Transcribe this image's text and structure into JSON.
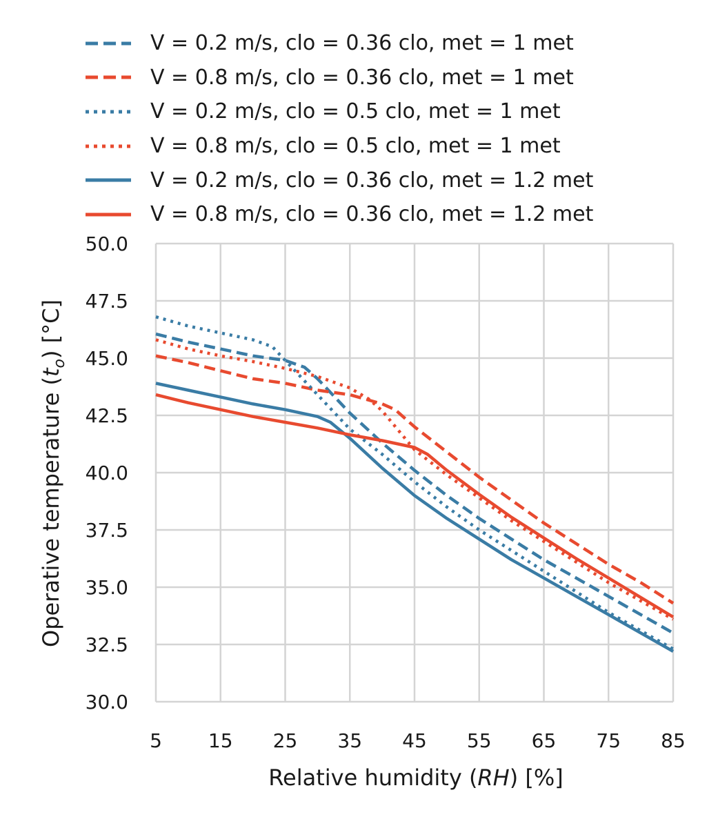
{
  "chart_data": {
    "type": "line",
    "xlabel": "Relative humidity (RH) [%]",
    "ylabel": "Operative temperature (t_o) [°C]",
    "xlim": [
      5,
      85
    ],
    "ylim": [
      30.0,
      50.0
    ],
    "xticks": [
      "5",
      "15",
      "25",
      "35",
      "45",
      "55",
      "65",
      "75",
      "85"
    ],
    "yticks": [
      "30.0",
      "32.5",
      "35.0",
      "37.5",
      "40.0",
      "42.5",
      "45.0",
      "47.5",
      "50.0"
    ],
    "grid": true,
    "legend_position": "top",
    "series": [
      {
        "name": "V = 0.2 m/s, clo = 0.36 clo, met = 1 met",
        "color": "#3a7ca5",
        "dash": "dashed",
        "x": [
          5,
          10,
          15,
          20,
          25,
          28,
          30,
          35,
          40,
          45,
          50,
          55,
          60,
          65,
          70,
          75,
          80,
          85
        ],
        "y": [
          46.05,
          45.7,
          45.4,
          45.1,
          44.9,
          44.6,
          44.1,
          42.6,
          41.3,
          40.1,
          39.0,
          38.0,
          37.1,
          36.2,
          35.4,
          34.6,
          33.8,
          33.0
        ]
      },
      {
        "name": "V = 0.8 m/s, clo = 0.36 clo, met = 1 met",
        "color": "#e84a2f",
        "dash": "dashed",
        "x": [
          5,
          10,
          15,
          20,
          25,
          30,
          35,
          40,
          42,
          45,
          50,
          55,
          60,
          65,
          70,
          75,
          80,
          85
        ],
        "y": [
          45.1,
          44.8,
          44.45,
          44.1,
          43.9,
          43.6,
          43.4,
          43.0,
          42.75,
          42.0,
          40.9,
          39.8,
          38.8,
          37.8,
          36.9,
          36.0,
          35.2,
          34.3
        ]
      },
      {
        "name": "V = 0.2 m/s, clo = 0.5 clo, met = 1 met",
        "color": "#3a7ca5",
        "dash": "dotted",
        "x": [
          5,
          10,
          15,
          20,
          23,
          25,
          30,
          35,
          40,
          45,
          50,
          55,
          60,
          65,
          70,
          75,
          80,
          85
        ],
        "y": [
          46.8,
          46.4,
          46.1,
          45.8,
          45.5,
          44.9,
          43.4,
          41.9,
          40.8,
          39.6,
          38.5,
          37.5,
          36.6,
          35.7,
          34.8,
          33.9,
          33.1,
          32.3
        ]
      },
      {
        "name": "V = 0.8 m/s, clo = 0.5 clo, met = 1 met",
        "color": "#e84a2f",
        "dash": "dotted",
        "x": [
          5,
          10,
          15,
          20,
          25,
          30,
          35,
          38,
          40,
          45,
          50,
          55,
          60,
          65,
          70,
          75,
          80,
          85
        ],
        "y": [
          45.8,
          45.4,
          45.1,
          44.85,
          44.55,
          44.2,
          43.7,
          43.2,
          42.7,
          41.0,
          39.9,
          38.9,
          37.9,
          37.0,
          36.1,
          35.2,
          34.4,
          33.6
        ]
      },
      {
        "name": "V = 0.2 m/s, clo = 0.36 clo, met = 1.2 met",
        "color": "#3a7ca5",
        "dash": "solid",
        "x": [
          5,
          10,
          15,
          20,
          25,
          30,
          32,
          35,
          40,
          45,
          50,
          55,
          60,
          65,
          70,
          75,
          80,
          85
        ],
        "y": [
          43.9,
          43.6,
          43.3,
          43.0,
          42.75,
          42.45,
          42.2,
          41.5,
          40.2,
          39.0,
          38.0,
          37.1,
          36.2,
          35.4,
          34.6,
          33.8,
          33.0,
          32.2
        ]
      },
      {
        "name": "V = 0.8 m/s, clo = 0.36 clo, met = 1.2 met",
        "color": "#e84a2f",
        "dash": "solid",
        "x": [
          5,
          10,
          15,
          20,
          25,
          30,
          35,
          40,
          45,
          47,
          50,
          55,
          60,
          65,
          70,
          75,
          80,
          85
        ],
        "y": [
          43.4,
          43.05,
          42.75,
          42.45,
          42.2,
          41.95,
          41.65,
          41.4,
          41.1,
          40.8,
          40.1,
          39.05,
          38.05,
          37.15,
          36.25,
          35.4,
          34.55,
          33.7
        ]
      }
    ]
  }
}
